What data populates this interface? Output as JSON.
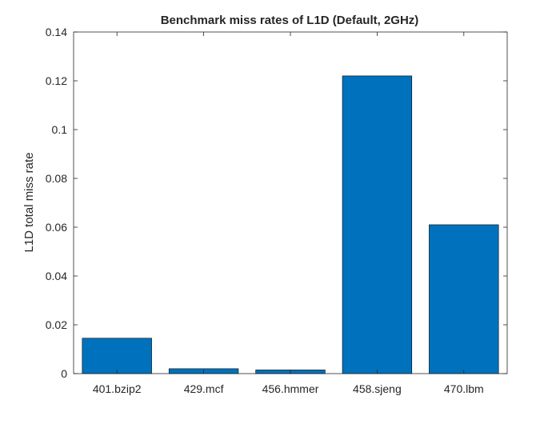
{
  "chart_data": {
    "type": "bar",
    "title": "Benchmark miss rates of L1D (Default, 2GHz)",
    "xlabel": "",
    "ylabel": "L1D total miss rate",
    "categories": [
      "401.bzip2",
      "429.mcf",
      "456.hmmer",
      "458.sjeng",
      "470.lbm"
    ],
    "values": [
      0.0145,
      0.002,
      0.0015,
      0.122,
      0.061
    ],
    "ylim": [
      0,
      0.14
    ],
    "yticks": [
      0,
      0.02,
      0.04,
      0.06,
      0.08,
      0.1,
      0.12,
      0.14
    ],
    "ytick_labels": [
      "0",
      "0.02",
      "0.04",
      "0.06",
      "0.08",
      "0.1",
      "0.12",
      "0.14"
    ],
    "grid": false,
    "colors": {
      "bar": "#0072BD",
      "bar_edge": "#000000",
      "axis": "#262626"
    }
  }
}
